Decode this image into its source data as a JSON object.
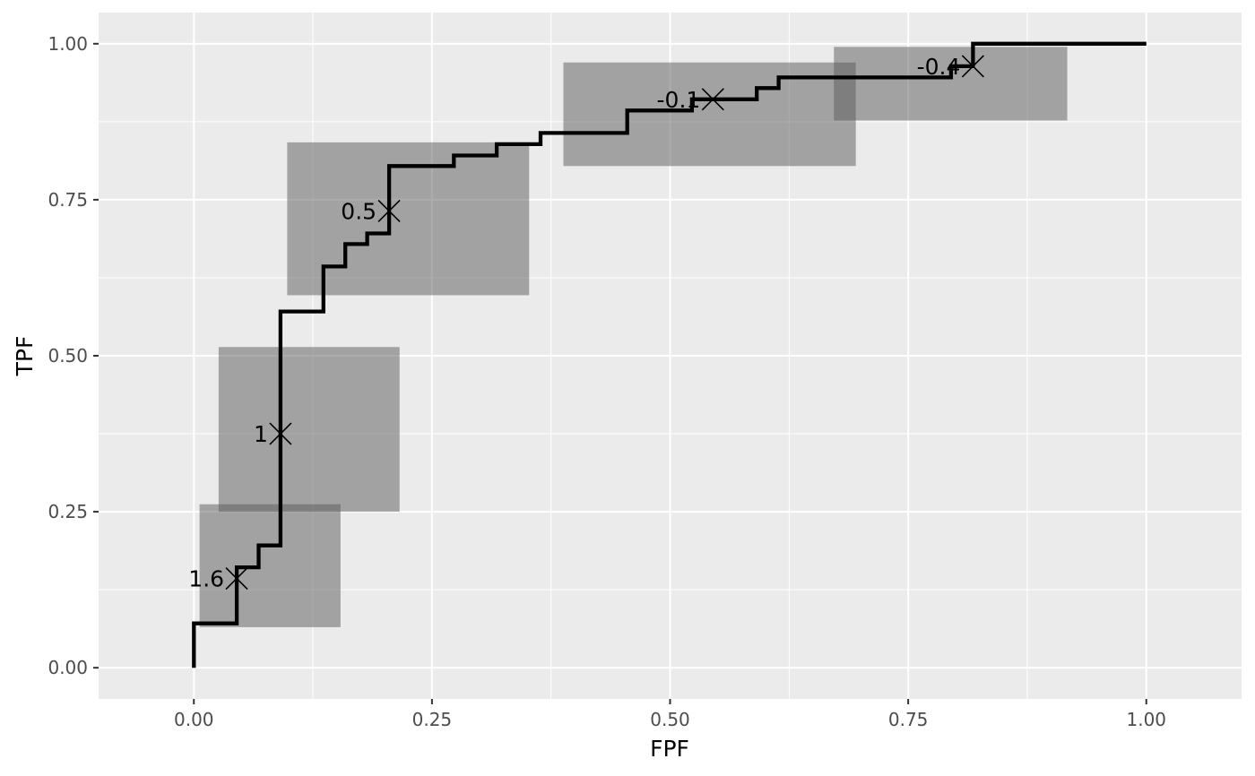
{
  "chart_data": {
    "type": "line",
    "title": "",
    "xlabel": "FPF",
    "ylabel": "TPF",
    "xlim": [
      -0.1,
      1.1
    ],
    "ylim": [
      -0.05,
      1.05
    ],
    "grid": true,
    "x_ticks": [
      {
        "value": 0.0,
        "label": "0.00"
      },
      {
        "value": 0.25,
        "label": "0.25"
      },
      {
        "value": 0.5,
        "label": "0.50"
      },
      {
        "value": 0.75,
        "label": "0.75"
      },
      {
        "value": 1.0,
        "label": "1.00"
      }
    ],
    "y_ticks": [
      {
        "value": 0.0,
        "label": "0.00"
      },
      {
        "value": 0.25,
        "label": "0.25"
      },
      {
        "value": 0.5,
        "label": "0.50"
      },
      {
        "value": 0.75,
        "label": "0.75"
      },
      {
        "value": 1.0,
        "label": "1.00"
      }
    ],
    "roc_step": {
      "x": [
        0.0,
        0.0,
        0.045,
        0.045,
        0.068,
        0.068,
        0.091,
        0.091,
        0.136,
        0.136,
        0.159,
        0.159,
        0.182,
        0.182,
        0.205,
        0.205,
        0.273,
        0.273,
        0.318,
        0.318,
        0.364,
        0.364,
        0.455,
        0.455,
        0.523,
        0.523,
        0.591,
        0.591,
        0.614,
        0.614,
        0.795,
        0.795,
        0.818,
        0.818,
        1.0
      ],
      "y": [
        0.0,
        0.071,
        0.071,
        0.161,
        0.161,
        0.196,
        0.196,
        0.571,
        0.571,
        0.643,
        0.643,
        0.679,
        0.679,
        0.696,
        0.696,
        0.804,
        0.804,
        0.821,
        0.821,
        0.839,
        0.839,
        0.857,
        0.857,
        0.893,
        0.893,
        0.911,
        0.911,
        0.929,
        0.929,
        0.946,
        0.946,
        0.964,
        0.964,
        1.0,
        1.0
      ]
    },
    "cutoffs": [
      {
        "label": "1.6",
        "fpf": 0.045,
        "tpf": 0.143,
        "fpf_range": [
          0.006,
          0.154
        ],
        "tpf_range": [
          0.065,
          0.262
        ]
      },
      {
        "label": "1",
        "fpf": 0.091,
        "tpf": 0.375,
        "fpf_range": [
          0.026,
          0.216
        ],
        "tpf_range": [
          0.25,
          0.514
        ]
      },
      {
        "label": "0.5",
        "fpf": 0.205,
        "tpf": 0.732,
        "fpf_range": [
          0.098,
          0.352
        ],
        "tpf_range": [
          0.597,
          0.842
        ]
      },
      {
        "label": "-0.1",
        "fpf": 0.545,
        "tpf": 0.911,
        "fpf_range": [
          0.388,
          0.695
        ],
        "tpf_range": [
          0.804,
          0.97
        ]
      },
      {
        "label": "-0.4",
        "fpf": 0.818,
        "tpf": 0.964,
        "fpf_range": [
          0.672,
          0.917
        ],
        "tpf_range": [
          0.877,
          0.995
        ]
      }
    ],
    "colors": {
      "panel_background": "#ebebeb",
      "grid": "#ffffff",
      "line": "#000000",
      "box_fill": "#595959",
      "box_opacity": 0.5,
      "tick_text": "#4d4d4d"
    }
  }
}
